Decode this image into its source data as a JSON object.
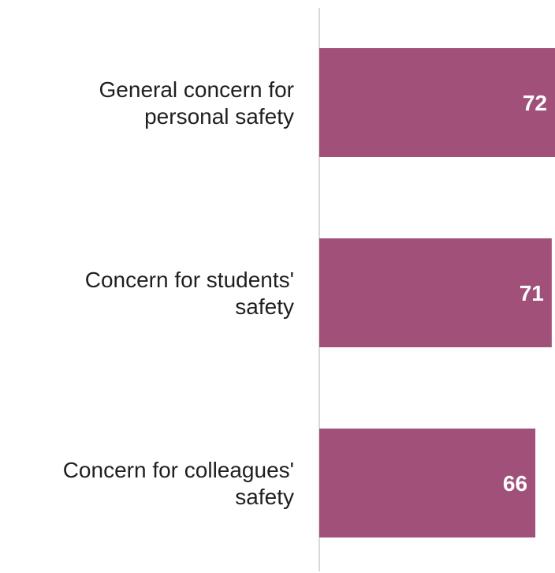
{
  "chart_data": {
    "type": "bar",
    "orientation": "horizontal",
    "categories": [
      [
        "General concern for",
        "personal safety"
      ],
      [
        "Concern for students'",
        "safety"
      ],
      [
        "Concern for colleagues'",
        "safety"
      ]
    ],
    "values": [
      72,
      71,
      66
    ],
    "data_labels": [
      "72",
      "71",
      "66"
    ],
    "bar_color": "#a05079",
    "axis_color": "#d9d9d9",
    "grid": false,
    "legend": "none"
  }
}
